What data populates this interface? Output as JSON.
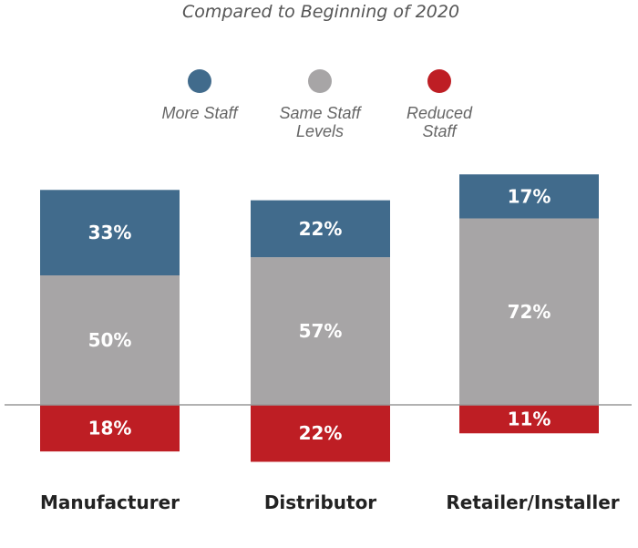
{
  "chart_data": {
    "type": "bar",
    "stacked": true,
    "title": "Compared to Beginning of 2020",
    "categories": [
      "Manufacturer",
      "Distributor",
      "Retailer/Installer"
    ],
    "series": [
      {
        "name": "More Staff",
        "values": [
          33,
          22,
          17
        ],
        "color": "#416B8C",
        "labels": [
          "33%",
          "22%",
          "17%"
        ]
      },
      {
        "name": "Same Staff Levels",
        "values": [
          50,
          57,
          72
        ],
        "color": "#A7A5A6",
        "labels": [
          "50%",
          "57%",
          "72%"
        ]
      },
      {
        "name": "Reduced Staff",
        "values": [
          -18,
          -22,
          -11
        ],
        "color": "#BE1E24",
        "labels": [
          "18%",
          "22%",
          "11%"
        ]
      }
    ],
    "legend": {
      "placement": "top",
      "lines": [
        [
          "More Staff"
        ],
        [
          "Same Staff",
          "Levels"
        ],
        [
          "Reduced",
          "Staff"
        ]
      ]
    },
    "grid": false
  }
}
